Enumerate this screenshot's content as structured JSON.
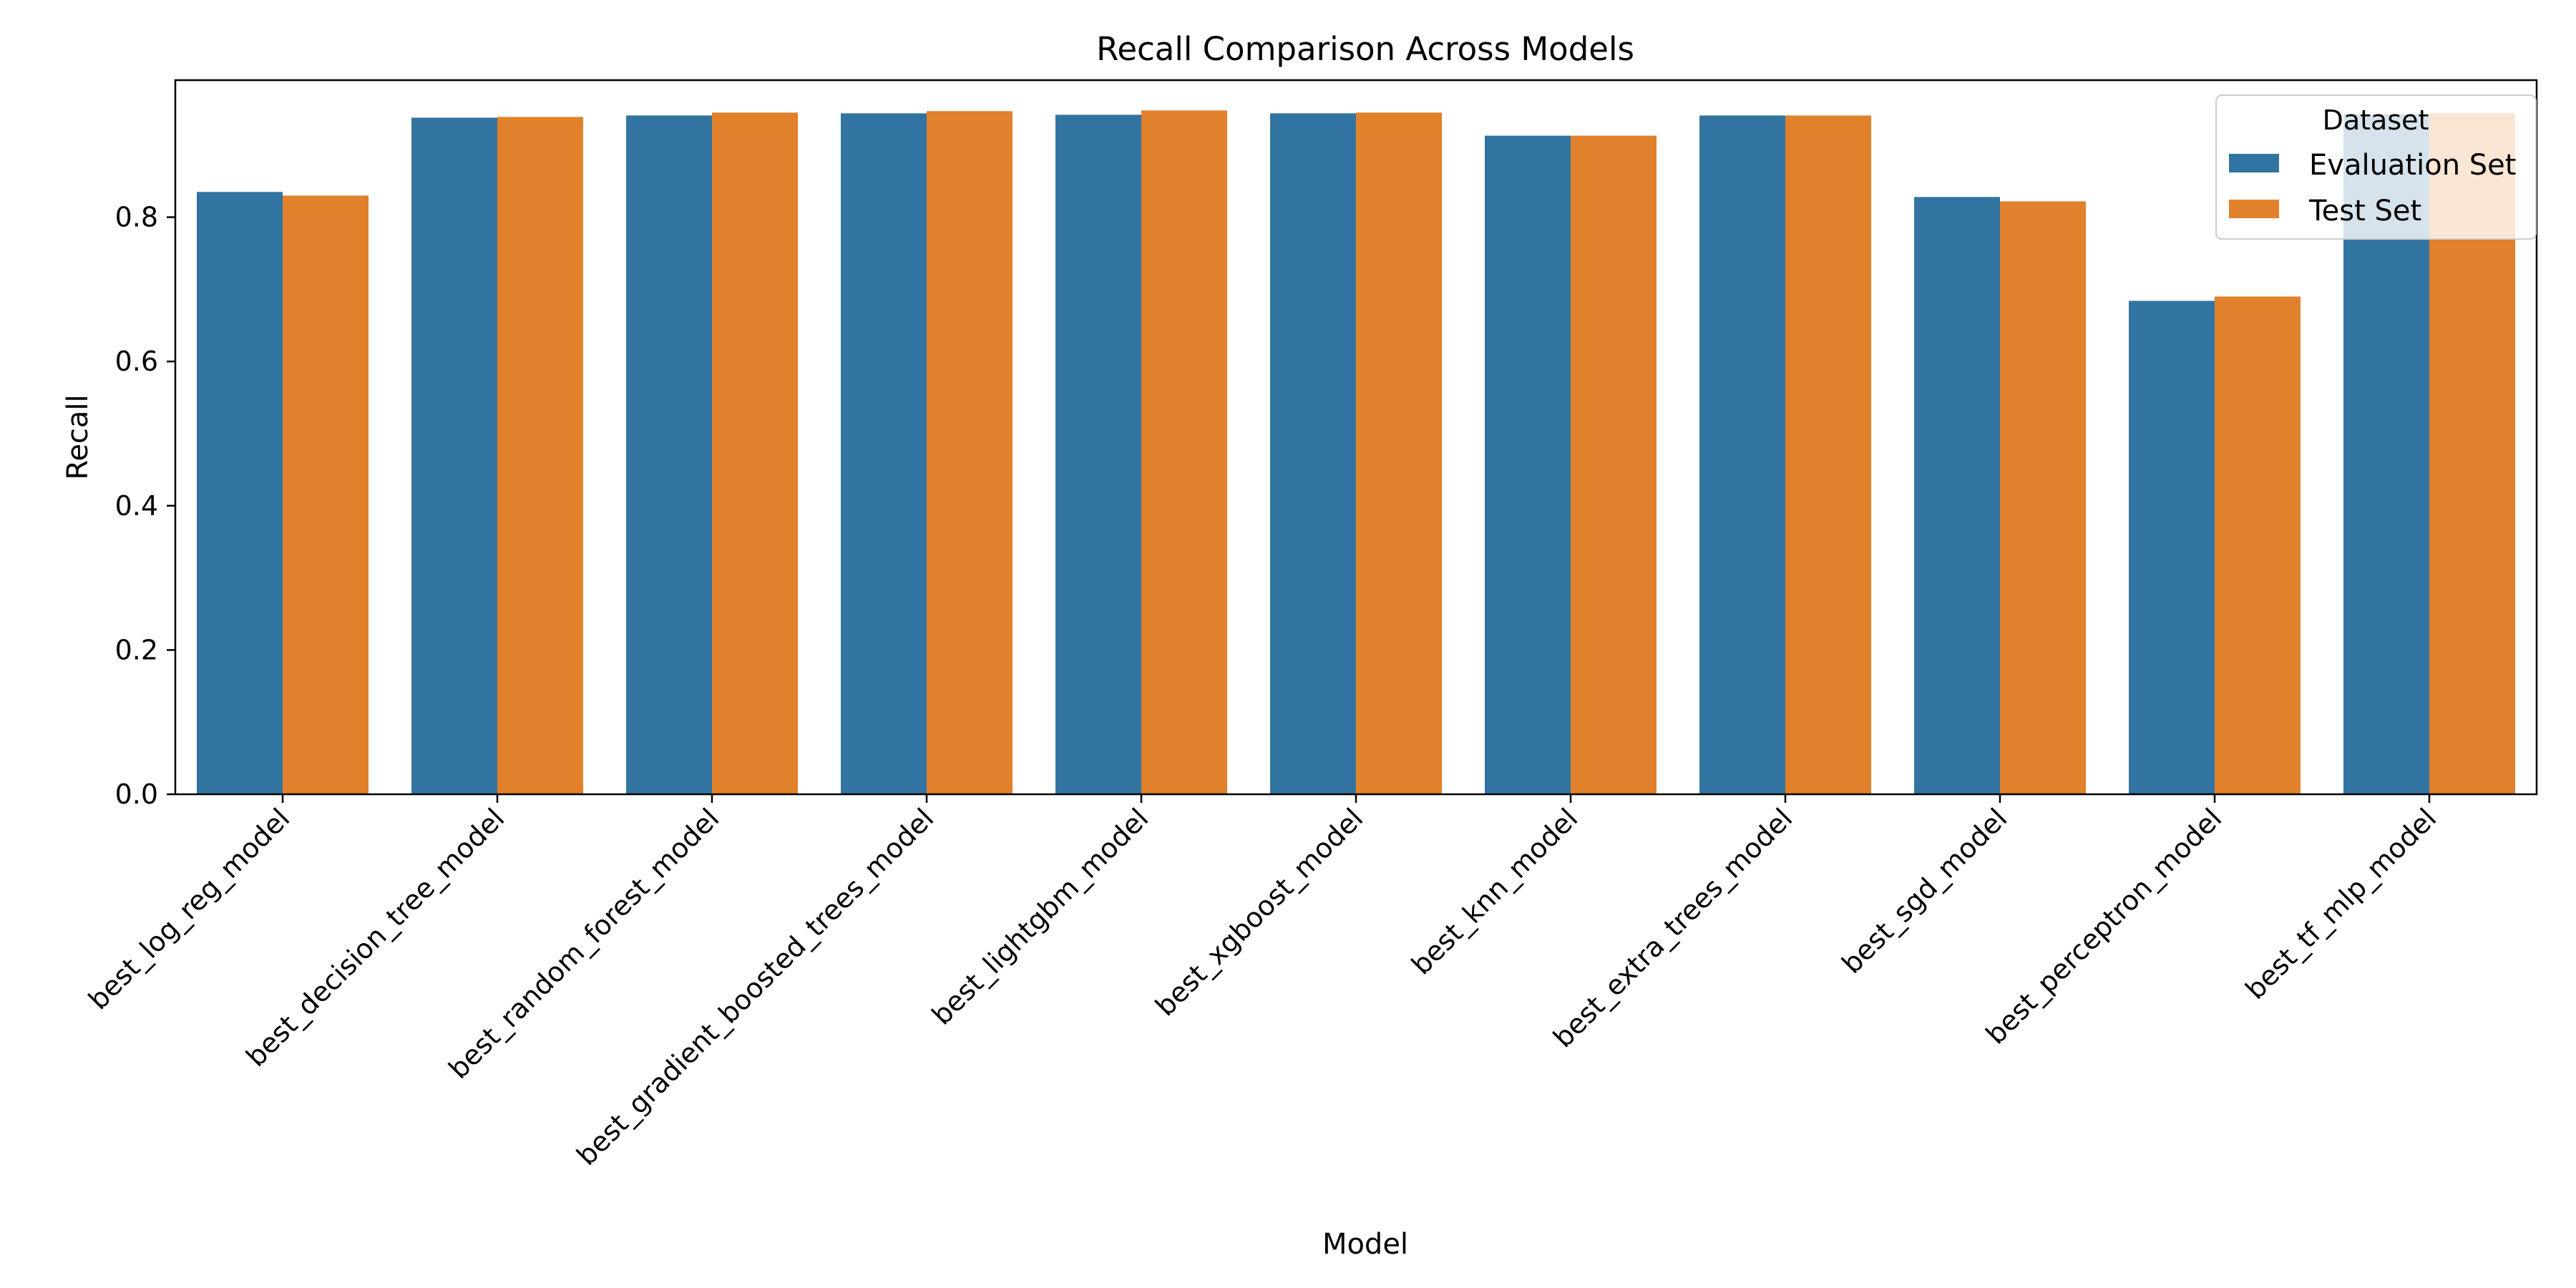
{
  "chart_data": {
    "type": "bar",
    "title": "Recall Comparison Across Models",
    "xlabel": "Model",
    "ylabel": "Recall",
    "ylim": [
      0,
      0.99
    ],
    "yticks": [
      0.0,
      0.2,
      0.4,
      0.6,
      0.8
    ],
    "yticks_labels": [
      "0.0",
      "0.2",
      "0.4",
      "0.6",
      "0.8"
    ],
    "grid": false,
    "legend": {
      "title": "Dataset",
      "position": "top-right"
    },
    "categories": [
      "best_log_reg_model",
      "best_decision_tree_model",
      "best_random_forest_model",
      "best_gradient_boosted_trees_model",
      "best_lightgbm_model",
      "best_xgboost_model",
      "best_knn_model",
      "best_extra_trees_model",
      "best_sgd_model",
      "best_perceptron_model",
      "best_tf_mlp_model"
    ],
    "series": [
      {
        "name": "Evaluation Set",
        "color": "#3274a1",
        "values": [
          0.835,
          0.938,
          0.941,
          0.944,
          0.942,
          0.944,
          0.913,
          0.941,
          0.828,
          0.684,
          0.943
        ]
      },
      {
        "name": "Test Set",
        "color": "#e1812c",
        "values": [
          0.83,
          0.939,
          0.945,
          0.947,
          0.948,
          0.945,
          0.913,
          0.941,
          0.822,
          0.69,
          0.944
        ]
      }
    ]
  }
}
